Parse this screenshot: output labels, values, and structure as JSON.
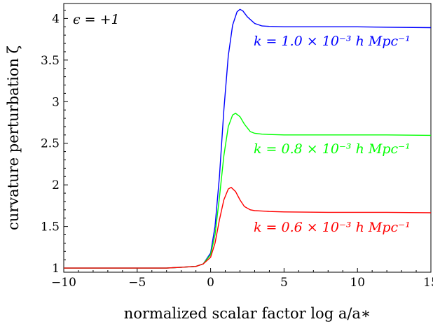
{
  "chart_data": {
    "type": "line",
    "title": "",
    "xlabel": "normalized scalar factor log a/a∗",
    "ylabel": "curvature perturbation ζ",
    "xlim": [
      -10,
      15
    ],
    "ylim": [
      0.95,
      4.18
    ],
    "xticks": [
      -10,
      -5,
      0,
      5,
      10,
      15
    ],
    "xtick_labels": [
      "−10",
      "−5",
      "0",
      "5",
      "10",
      "15"
    ],
    "yticks": [
      1,
      1.5,
      2,
      2.5,
      3,
      3.5,
      4
    ],
    "ytick_labels": [
      "1",
      "1.5",
      "2",
      "2.5",
      "3",
      "3.5",
      "4"
    ],
    "grid": false,
    "legend": "none",
    "annotations": [
      {
        "text": "ϵ = +1",
        "color": "#000000"
      }
    ],
    "series": [
      {
        "name": "k = 1.0 × 10⁻³ h Mpc⁻¹",
        "color": "#0000ff",
        "x": [
          -10,
          -6,
          -4,
          -3,
          -2,
          -1,
          -0.5,
          0,
          0.3,
          0.6,
          0.9,
          1.2,
          1.5,
          1.8,
          2.0,
          2.2,
          2.5,
          3.0,
          3.5,
          4.0,
          5.0,
          6.0,
          8.0,
          10.0,
          12.0,
          15.0
        ],
        "y": [
          1.0,
          1.0,
          1.0,
          1.0,
          1.01,
          1.02,
          1.05,
          1.18,
          1.5,
          2.1,
          2.9,
          3.55,
          3.92,
          4.08,
          4.11,
          4.09,
          4.02,
          3.94,
          3.91,
          3.905,
          3.9,
          3.9,
          3.9,
          3.9,
          3.895,
          3.89
        ]
      },
      {
        "name": "k = 0.8 × 10⁻³ h Mpc⁻¹",
        "color": "#00ff00",
        "x": [
          -10,
          -6,
          -4,
          -3,
          -2,
          -1,
          -0.5,
          0,
          0.3,
          0.6,
          0.9,
          1.2,
          1.5,
          1.7,
          2.0,
          2.3,
          2.7,
          3.0,
          3.5,
          4.0,
          5.0,
          8.0,
          10.0,
          12.0,
          15.0
        ],
        "y": [
          1.0,
          1.0,
          1.0,
          1.0,
          1.01,
          1.02,
          1.05,
          1.16,
          1.4,
          1.85,
          2.35,
          2.7,
          2.84,
          2.86,
          2.82,
          2.73,
          2.64,
          2.62,
          2.61,
          2.605,
          2.6,
          2.6,
          2.6,
          2.6,
          2.595
        ]
      },
      {
        "name": "k = 0.6 × 10⁻³ h Mpc⁻¹",
        "color": "#ff0000",
        "x": [
          -10,
          -6,
          -4,
          -3,
          -2,
          -1,
          -0.5,
          0,
          0.3,
          0.6,
          0.9,
          1.2,
          1.4,
          1.7,
          2.0,
          2.3,
          2.7,
          3.0,
          3.5,
          4.0,
          5.0,
          8.0,
          10.0,
          12.0,
          15.0
        ],
        "y": [
          1.0,
          1.0,
          1.0,
          1.0,
          1.01,
          1.02,
          1.05,
          1.13,
          1.3,
          1.58,
          1.82,
          1.95,
          1.97,
          1.92,
          1.82,
          1.74,
          1.7,
          1.69,
          1.685,
          1.68,
          1.675,
          1.67,
          1.67,
          1.67,
          1.665
        ]
      }
    ]
  }
}
